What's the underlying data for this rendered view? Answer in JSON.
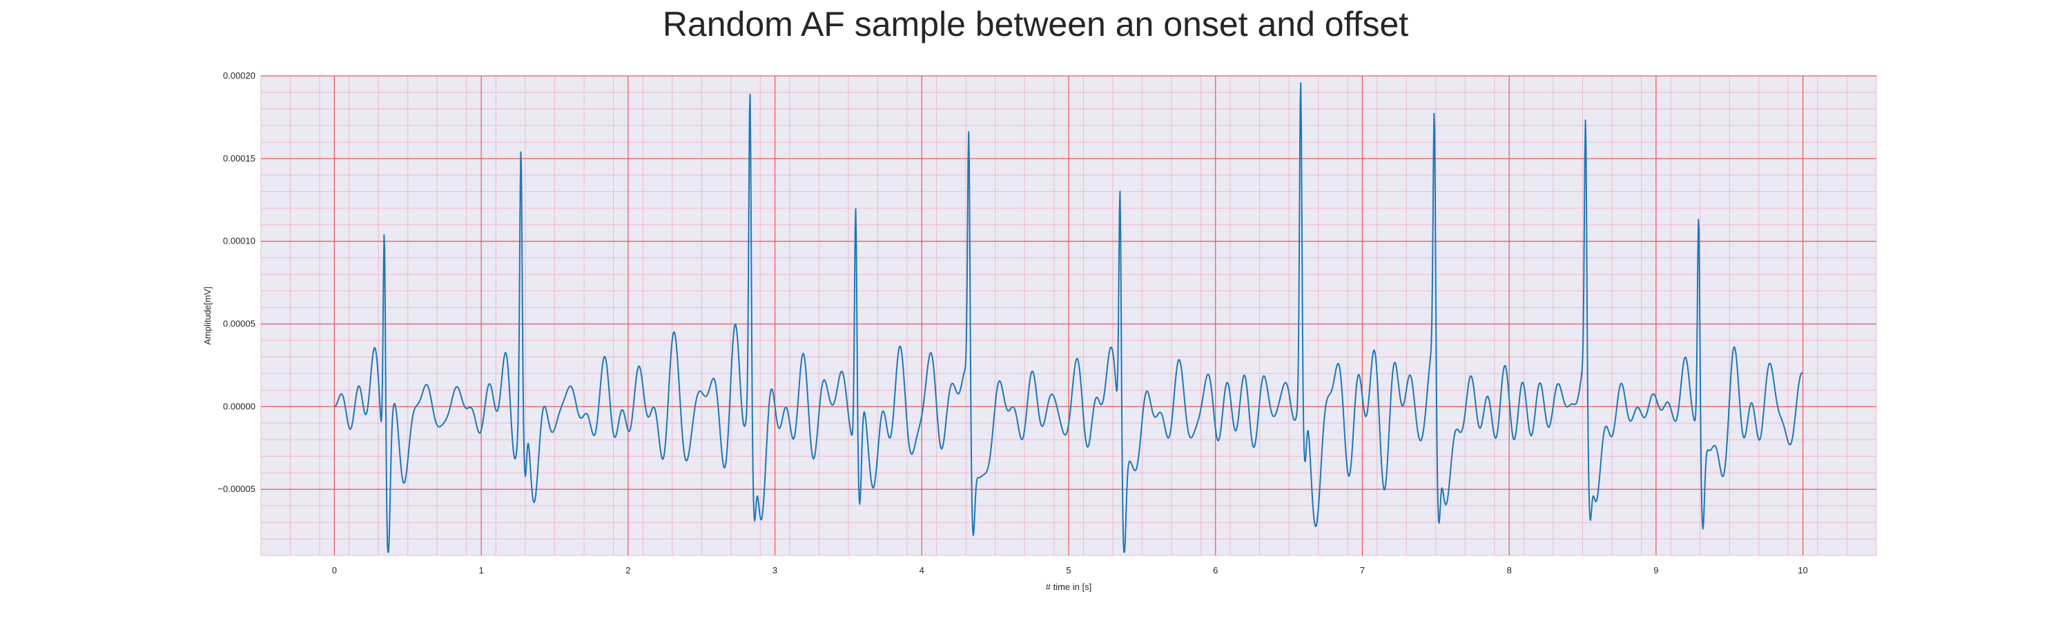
{
  "chart_data": {
    "type": "line",
    "title": "Random AF sample between an onset and offset",
    "xlabel": "# time in [s]",
    "ylabel": "Amplitude[mV]",
    "xlim": [
      -0.5,
      10.5
    ],
    "ylim": [
      -9e-05,
      0.0002
    ],
    "x_ticks": [
      0,
      1,
      2,
      3,
      4,
      5,
      6,
      7,
      8,
      9,
      10
    ],
    "x_tick_labels": [
      "0",
      "1",
      "2",
      "3",
      "4",
      "5",
      "6",
      "7",
      "8",
      "9",
      "10"
    ],
    "y_ticks": [
      -5e-05,
      0,
      5e-05,
      0.0001,
      0.00015,
      0.0002
    ],
    "y_tick_labels": [
      "−0.00005",
      "0.00000",
      "0.00005",
      "0.00010",
      "0.00015",
      "0.00020"
    ],
    "grid": true,
    "minor_grid": true,
    "colors": {
      "line": "#1f77b4",
      "plot_background": "#eae9f4",
      "major_grid": "#ee5555",
      "minor_grid": "#f3b9c9"
    },
    "series": [
      {
        "values_x_start": 0,
        "values_x_end": 10,
        "r_peaks": [
          {
            "t": 0.34,
            "amp": 0.000147,
            "s": -7e-05
          },
          {
            "t": 1.27,
            "amp": 0.00015,
            "s": -7.1e-05
          },
          {
            "t": 2.83,
            "amp": 0.000185,
            "s": -7.2e-05
          },
          {
            "t": 3.55,
            "amp": 0.00014,
            "s": -6.7e-05
          },
          {
            "t": 4.32,
            "amp": 0.000158,
            "s": -6.7e-05
          },
          {
            "t": 5.35,
            "amp": 0.000155,
            "s": -6.5e-05
          },
          {
            "t": 6.58,
            "amp": 0.000188,
            "s": -6e-05
          },
          {
            "t": 7.49,
            "amp": 0.000151,
            "s": -7.7e-05
          },
          {
            "t": 8.52,
            "amp": 0.000156,
            "s": -6.3e-05
          },
          {
            "t": 9.29,
            "amp": 0.000128,
            "s": -7.2e-05
          }
        ],
        "baseline_range": [
          -3.5e-05,
          2.7e-05
        ]
      }
    ]
  }
}
